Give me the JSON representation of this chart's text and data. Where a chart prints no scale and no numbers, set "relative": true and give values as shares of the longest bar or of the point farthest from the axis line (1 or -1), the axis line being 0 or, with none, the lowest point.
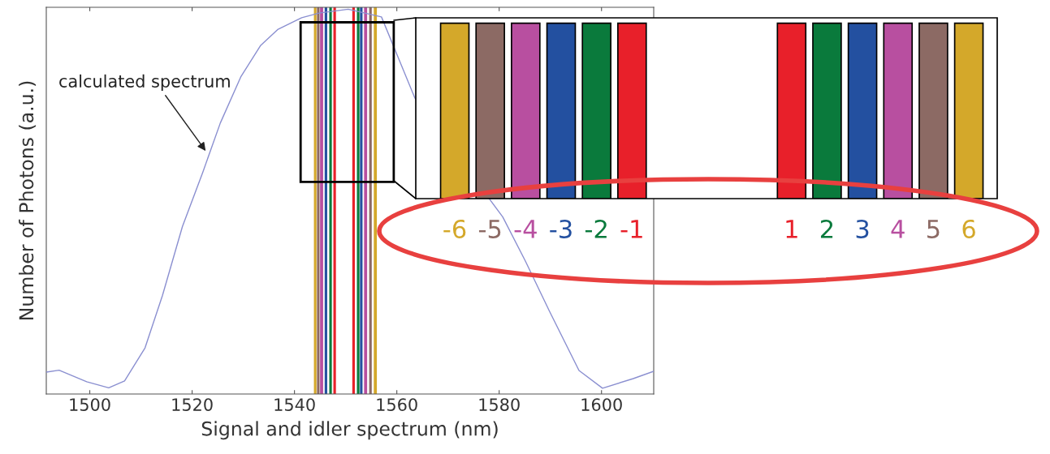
{
  "chart_data": {
    "type": "line",
    "relative": true,
    "xlabel": "Signal and idler spectrum (nm)",
    "ylabel": "Number of Photons (a.u.)",
    "xlim": [
      1491.5,
      1610.2
    ],
    "xticks": [
      1500,
      1520,
      1540,
      1560,
      1580,
      1600
    ],
    "tick_labels": "x",
    "grid": false,
    "legend": false,
    "marker": "none",
    "line_style": "solid",
    "series": [
      {
        "color": "#8a8fd0",
        "x": [
          1491.5,
          1494.0,
          1499.4,
          1503.7,
          1506.8,
          1510.8,
          1514.2,
          1518.1,
          1522.1,
          1525.5,
          1529.5,
          1533.4,
          1536.8,
          1541.4,
          1544.8,
          1550.5,
          1557.0,
          1563.5,
          1580.7,
          1585.1,
          1589.8,
          1595.6,
          1600.2,
          1606.2,
          1610.2
        ],
        "values": [
          0.057,
          0.062,
          0.032,
          0.016,
          0.034,
          0.12,
          0.256,
          0.435,
          0.577,
          0.704,
          0.824,
          0.906,
          0.948,
          0.978,
          0.99,
          1.0,
          0.98,
          0.77,
          0.46,
          0.346,
          0.216,
          0.061,
          0.015,
          0.04,
          0.059
        ]
      }
    ],
    "bands": [
      {
        "axis": "x",
        "from": 1543.8,
        "to": 1544.3,
        "color": "#d4a82a"
      },
      {
        "axis": "x",
        "from": 1544.4,
        "to": 1544.9,
        "color": "#8c6a64"
      },
      {
        "axis": "x",
        "from": 1545.0,
        "to": 1545.6,
        "color": "#b84fa0"
      },
      {
        "axis": "x",
        "from": 1545.9,
        "to": 1546.4,
        "color": "#2350a0"
      },
      {
        "axis": "x",
        "from": 1546.8,
        "to": 1547.3,
        "color": "#0a7a3c"
      },
      {
        "axis": "x",
        "from": 1547.6,
        "to": 1548.1,
        "color": "#e8202a"
      },
      {
        "axis": "x",
        "from": 1551.3,
        "to": 1551.8,
        "color": "#e8202a"
      },
      {
        "axis": "x",
        "from": 1552.2,
        "to": 1552.7,
        "color": "#0a7a3c"
      },
      {
        "axis": "x",
        "from": 1552.8,
        "to": 1553.3,
        "color": "#2350a0"
      },
      {
        "axis": "x",
        "from": 1553.6,
        "to": 1554.2,
        "color": "#b84fa0"
      },
      {
        "axis": "x",
        "from": 1554.6,
        "to": 1555.1,
        "color": "#8c6a64"
      },
      {
        "axis": "x",
        "from": 1555.5,
        "to": 1556.1,
        "color": "#d4a82a"
      }
    ],
    "annotations": [
      {
        "text": "calculated spectrum",
        "x": 1522.9,
        "y": 0.627
      },
      "-6",
      "-5",
      "-4",
      "-3",
      "-2",
      "-1",
      "1",
      "2",
      "3",
      "4",
      "5",
      "6"
    ]
  }
}
